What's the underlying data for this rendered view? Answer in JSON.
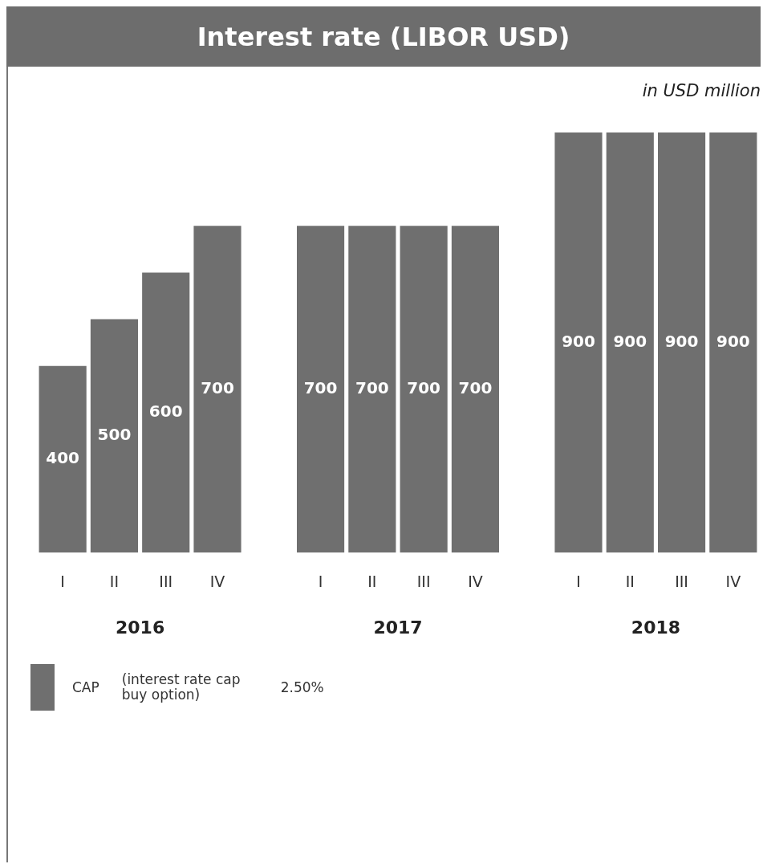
{
  "chart_data": {
    "type": "bar",
    "title": "Interest rate (LIBOR USD)",
    "subtitle": "in USD million",
    "categories": [
      "I",
      "II",
      "III",
      "IV",
      null,
      "I",
      "II",
      "III",
      "IV",
      null,
      "I",
      "II",
      "III",
      "IV"
    ],
    "series": [
      {
        "name": "CAP",
        "color": "#6f6f6f",
        "values": [
          400,
          500,
          600,
          700,
          null,
          700,
          700,
          700,
          700,
          null,
          900,
          900,
          900,
          900
        ]
      }
    ],
    "data_labels": true,
    "grid": false,
    "legend": "bottom left",
    "annotations": [
      "2016",
      "2017",
      "2018",
      "(interest rate cap buy option)",
      "2.50%"
    ]
  }
}
